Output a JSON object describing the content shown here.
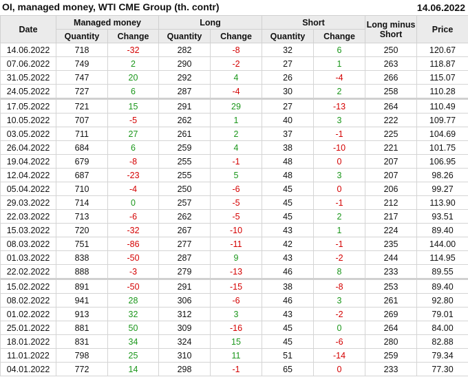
{
  "title": "OI, managed money, WTI CME Group (th. contr)",
  "report_date": "14.06.2022",
  "colors": {
    "up": "#1a961a",
    "down": "#d40000",
    "header_bg": "#ebebeb"
  },
  "headers": {
    "date": "Date",
    "managed_money": "Managed money",
    "long": "Long",
    "short": "Short",
    "long_minus_short": "Long minus Short",
    "price": "Price",
    "quantity": "Quantity",
    "change": "Change"
  },
  "separator_after_dates": [
    "24.05.2022",
    "22.02.2022"
  ],
  "rows": [
    {
      "date": "14.06.2022",
      "mm_q": "718",
      "mm_c": "-32",
      "l_q": "282",
      "l_c": "-8",
      "s_q": "32",
      "s_c": "6",
      "lms": "250",
      "price": "120.67",
      "c": [
        "r",
        "r",
        "g"
      ]
    },
    {
      "date": "07.06.2022",
      "mm_q": "749",
      "mm_c": "2",
      "l_q": "290",
      "l_c": "-2",
      "s_q": "27",
      "s_c": "1",
      "lms": "263",
      "price": "118.87",
      "c": [
        "g",
        "r",
        "g"
      ]
    },
    {
      "date": "31.05.2022",
      "mm_q": "747",
      "mm_c": "20",
      "l_q": "292",
      "l_c": "4",
      "s_q": "26",
      "s_c": "-4",
      "lms": "266",
      "price": "115.07",
      "c": [
        "g",
        "g",
        "r"
      ]
    },
    {
      "date": "24.05.2022",
      "mm_q": "727",
      "mm_c": "6",
      "l_q": "287",
      "l_c": "-4",
      "s_q": "30",
      "s_c": "2",
      "lms": "258",
      "price": "110.28",
      "c": [
        "g",
        "r",
        "g"
      ]
    },
    {
      "date": "17.05.2022",
      "mm_q": "721",
      "mm_c": "15",
      "l_q": "291",
      "l_c": "29",
      "s_q": "27",
      "s_c": "-13",
      "lms": "264",
      "price": "110.49",
      "c": [
        "g",
        "g",
        "r"
      ]
    },
    {
      "date": "10.05.2022",
      "mm_q": "707",
      "mm_c": "-5",
      "l_q": "262",
      "l_c": "1",
      "s_q": "40",
      "s_c": "3",
      "lms": "222",
      "price": "109.77",
      "c": [
        "r",
        "g",
        "g"
      ]
    },
    {
      "date": "03.05.2022",
      "mm_q": "711",
      "mm_c": "27",
      "l_q": "261",
      "l_c": "2",
      "s_q": "37",
      "s_c": "-1",
      "lms": "225",
      "price": "104.69",
      "c": [
        "g",
        "g",
        "r"
      ]
    },
    {
      "date": "26.04.2022",
      "mm_q": "684",
      "mm_c": "6",
      "l_q": "259",
      "l_c": "4",
      "s_q": "38",
      "s_c": "-10",
      "lms": "221",
      "price": "101.75",
      "c": [
        "g",
        "g",
        "r"
      ]
    },
    {
      "date": "19.04.2022",
      "mm_q": "679",
      "mm_c": "-8",
      "l_q": "255",
      "l_c": "-1",
      "s_q": "48",
      "s_c": "0",
      "lms": "207",
      "price": "106.95",
      "c": [
        "r",
        "r",
        "r"
      ]
    },
    {
      "date": "12.04.2022",
      "mm_q": "687",
      "mm_c": "-23",
      "l_q": "255",
      "l_c": "5",
      "s_q": "48",
      "s_c": "3",
      "lms": "207",
      "price": "98.26",
      "c": [
        "r",
        "g",
        "g"
      ]
    },
    {
      "date": "05.04.2022",
      "mm_q": "710",
      "mm_c": "-4",
      "l_q": "250",
      "l_c": "-6",
      "s_q": "45",
      "s_c": "0",
      "lms": "206",
      "price": "99.27",
      "c": [
        "r",
        "r",
        "r"
      ]
    },
    {
      "date": "29.03.2022",
      "mm_q": "714",
      "mm_c": "0",
      "l_q": "257",
      "l_c": "-5",
      "s_q": "45",
      "s_c": "-1",
      "lms": "212",
      "price": "113.90",
      "c": [
        "g",
        "r",
        "r"
      ]
    },
    {
      "date": "22.03.2022",
      "mm_q": "713",
      "mm_c": "-6",
      "l_q": "262",
      "l_c": "-5",
      "s_q": "45",
      "s_c": "2",
      "lms": "217",
      "price": "93.51",
      "c": [
        "r",
        "r",
        "g"
      ]
    },
    {
      "date": "15.03.2022",
      "mm_q": "720",
      "mm_c": "-32",
      "l_q": "267",
      "l_c": "-10",
      "s_q": "43",
      "s_c": "1",
      "lms": "224",
      "price": "89.40",
      "c": [
        "r",
        "r",
        "g"
      ]
    },
    {
      "date": "08.03.2022",
      "mm_q": "751",
      "mm_c": "-86",
      "l_q": "277",
      "l_c": "-11",
      "s_q": "42",
      "s_c": "-1",
      "lms": "235",
      "price": "144.00",
      "c": [
        "r",
        "r",
        "r"
      ]
    },
    {
      "date": "01.03.2022",
      "mm_q": "838",
      "mm_c": "-50",
      "l_q": "287",
      "l_c": "9",
      "s_q": "43",
      "s_c": "-2",
      "lms": "244",
      "price": "114.95",
      "c": [
        "r",
        "g",
        "r"
      ]
    },
    {
      "date": "22.02.2022",
      "mm_q": "888",
      "mm_c": "-3",
      "l_q": "279",
      "l_c": "-13",
      "s_q": "46",
      "s_c": "8",
      "lms": "233",
      "price": "89.55",
      "c": [
        "r",
        "r",
        "g"
      ]
    },
    {
      "date": "15.02.2022",
      "mm_q": "891",
      "mm_c": "-50",
      "l_q": "291",
      "l_c": "-15",
      "s_q": "38",
      "s_c": "-8",
      "lms": "253",
      "price": "89.40",
      "c": [
        "r",
        "r",
        "r"
      ]
    },
    {
      "date": "08.02.2022",
      "mm_q": "941",
      "mm_c": "28",
      "l_q": "306",
      "l_c": "-6",
      "s_q": "46",
      "s_c": "3",
      "lms": "261",
      "price": "92.80",
      "c": [
        "g",
        "r",
        "g"
      ]
    },
    {
      "date": "01.02.2022",
      "mm_q": "913",
      "mm_c": "32",
      "l_q": "312",
      "l_c": "3",
      "s_q": "43",
      "s_c": "-2",
      "lms": "269",
      "price": "79.01",
      "c": [
        "g",
        "g",
        "r"
      ]
    },
    {
      "date": "25.01.2022",
      "mm_q": "881",
      "mm_c": "50",
      "l_q": "309",
      "l_c": "-16",
      "s_q": "45",
      "s_c": "0",
      "lms": "264",
      "price": "84.00",
      "c": [
        "g",
        "r",
        "g"
      ]
    },
    {
      "date": "18.01.2022",
      "mm_q": "831",
      "mm_c": "34",
      "l_q": "324",
      "l_c": "15",
      "s_q": "45",
      "s_c": "-6",
      "lms": "280",
      "price": "82.88",
      "c": [
        "g",
        "g",
        "r"
      ]
    },
    {
      "date": "11.01.2022",
      "mm_q": "798",
      "mm_c": "25",
      "l_q": "310",
      "l_c": "11",
      "s_q": "51",
      "s_c": "-14",
      "lms": "259",
      "price": "79.34",
      "c": [
        "g",
        "g",
        "r"
      ]
    },
    {
      "date": "04.01.2022",
      "mm_q": "772",
      "mm_c": "14",
      "l_q": "298",
      "l_c": "-1",
      "s_q": "65",
      "s_c": "0",
      "lms": "233",
      "price": "77.30",
      "c": [
        "g",
        "r",
        "r"
      ]
    }
  ]
}
